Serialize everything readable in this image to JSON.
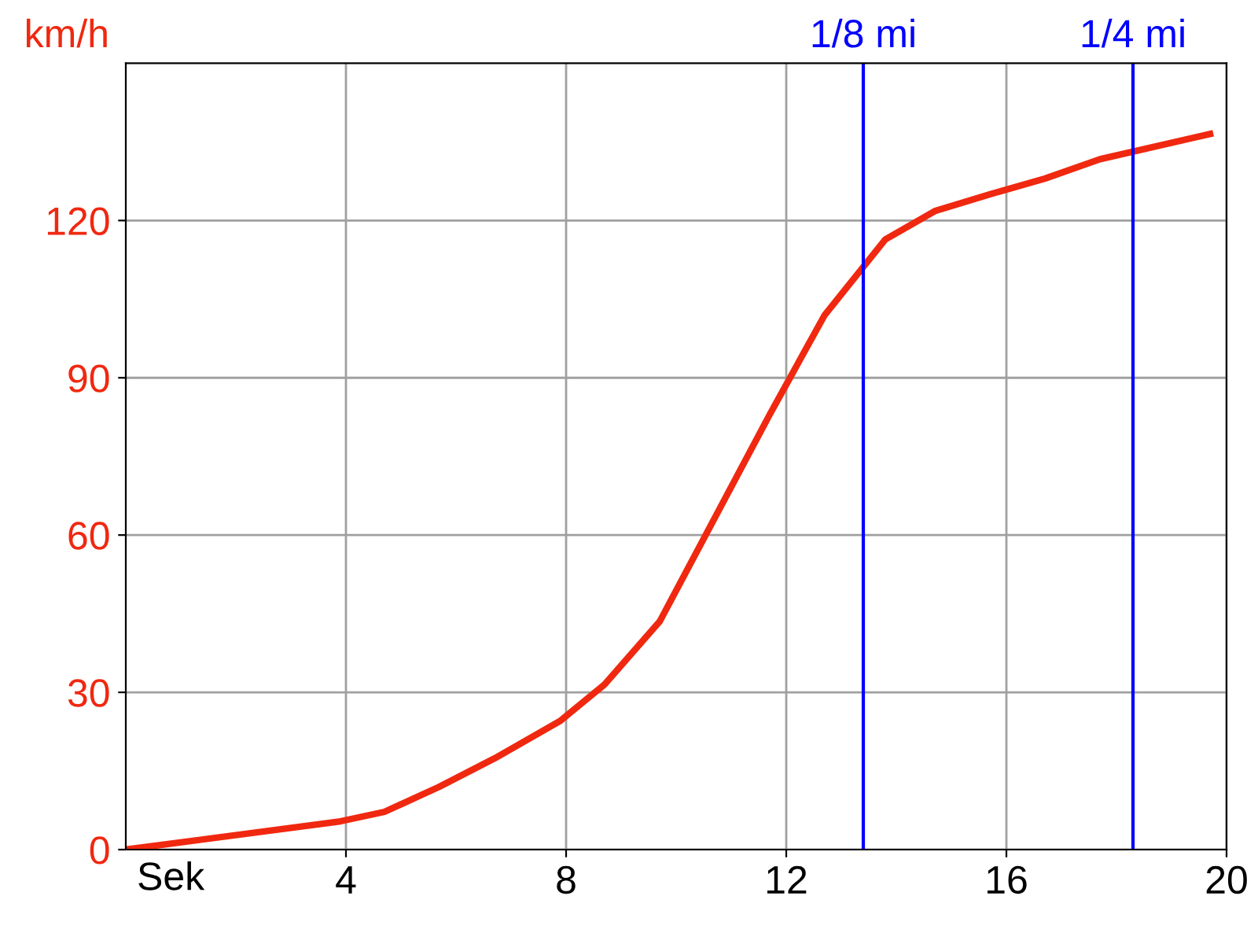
{
  "chart_data": {
    "type": "line",
    "xlabel": "Sek",
    "ylabel": "km/h",
    "x": [
      0,
      3.9,
      4.7,
      5.7,
      6.7,
      7.9,
      8.7,
      9.7,
      11.7,
      12.7,
      13.8,
      14.7,
      15.7,
      16.7,
      17.7,
      19.7
    ],
    "series": [
      {
        "color": "#f02810",
        "values": [
          0,
          5.4,
          7.2,
          12,
          17.4,
          24.6,
          31.5,
          43.5,
          83,
          102,
          116.4,
          121.8,
          125,
          128,
          131.7,
          136.5
        ]
      }
    ],
    "xlim": [
      0,
      20
    ],
    "ylim": [
      0,
      150
    ],
    "xticks": [
      4,
      8,
      12,
      16,
      20
    ],
    "yticks": [
      0,
      30,
      60,
      90,
      120
    ],
    "grid": true,
    "marker": "none",
    "line_style": "solid",
    "ref_lines": [
      {
        "axis": "x",
        "value": 13.4,
        "label": "1/8 mi",
        "color": "#0000ff"
      },
      {
        "axis": "x",
        "value": 18.3,
        "label": "1/4 mi",
        "color": "#0000ff"
      }
    ]
  }
}
